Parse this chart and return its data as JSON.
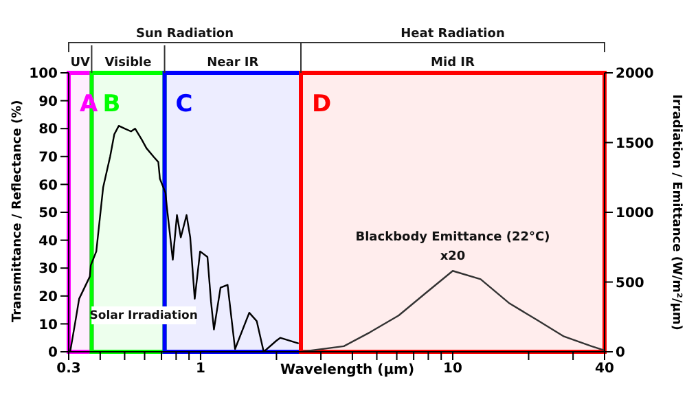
{
  "chart_data": {
    "type": "line",
    "xlabel": "Wavelength (µm)",
    "ylabel": "Transmittance / Reflectance (%)",
    "y2label": "Irradiation / Emittance (W/m²/µm)",
    "log": "x",
    "grid": false,
    "legend": false,
    "marker": "none",
    "line_style": "solid",
    "xlim": [
      0.3,
      40
    ],
    "xticks": [
      0.3,
      {
        "value": 0.4,
        "label": null
      },
      {
        "value": 0.5,
        "label": null
      },
      {
        "value": 0.6,
        "label": null
      },
      {
        "value": 0.7,
        "label": null
      },
      {
        "value": 0.8,
        "label": null
      },
      {
        "value": 0.9,
        "label": null
      },
      1,
      {
        "value": 2,
        "label": null
      },
      {
        "value": 3,
        "label": null
      },
      {
        "value": 4,
        "label": null
      },
      {
        "value": 5,
        "label": null
      },
      {
        "value": 6,
        "label": null
      },
      {
        "value": 7,
        "label": null
      },
      {
        "value": 8,
        "label": null
      },
      {
        "value": 9,
        "label": null
      },
      10,
      {
        "value": 20,
        "label": null
      },
      {
        "value": 30,
        "label": null
      },
      40
    ],
    "ylim": [
      0,
      100
    ],
    "yticks": [
      0,
      10,
      20,
      30,
      40,
      50,
      60,
      70,
      80,
      90,
      100
    ],
    "y2lim": [
      0,
      2000
    ],
    "y2ticks": [
      0,
      500,
      1000,
      1500,
      2000
    ],
    "series": [
      {
        "color": "#000000",
        "x": [
          0.3,
          0.304,
          0.319,
          0.33,
          0.364,
          0.367,
          0.386,
          0.411,
          0.438,
          0.455,
          0.474,
          0.5,
          0.53,
          0.55,
          0.585,
          0.61,
          0.65,
          0.68,
          0.69,
          0.726,
          0.735,
          0.776,
          0.806,
          0.835,
          0.88,
          0.91,
          0.948,
          0.996,
          1.065,
          1.1,
          1.13,
          1.2,
          1.28,
          1.37,
          1.56,
          1.67,
          1.78,
          2.0,
          2.07,
          2.45
        ],
        "values": [
          0,
          0,
          11,
          19,
          27,
          31,
          36,
          59,
          70,
          78,
          81,
          80,
          79,
          80,
          76,
          73,
          70,
          68,
          62,
          57,
          52,
          33,
          49,
          41,
          49,
          41,
          19,
          36,
          34,
          18,
          8,
          23,
          24,
          1,
          14,
          11,
          0,
          4,
          5,
          3
        ]
      },
      {
        "color": "#333333",
        "axis": "y2",
        "x": [
          2.5,
          3.7,
          4.7,
          6.1,
          7.8,
          10,
          12.9,
          16.7,
          21.5,
          27.6,
          35.5,
          40
        ],
        "values": [
          0,
          40,
          140,
          260,
          420,
          580,
          520,
          350,
          230,
          110,
          40,
          10
        ]
      }
    ],
    "bands": [
      {
        "axis": "x",
        "from": 0.3,
        "to": 0.37,
        "label": "A",
        "color": "#ff00ff"
      },
      {
        "axis": "x",
        "from": 0.37,
        "to": 0.72,
        "label": "B",
        "color": "#00ff00"
      },
      {
        "axis": "x",
        "from": 0.72,
        "to": 2.5,
        "label": "C",
        "color": "#0000ff"
      },
      {
        "axis": "x",
        "from": 2.5,
        "to": 40,
        "label": "D",
        "color": "#ff0000"
      }
    ],
    "annotations": [
      "Sun Radiation",
      "Heat Radiation",
      "UV",
      "Visible",
      "Near IR",
      "Mid IR",
      "Solar Irradiation",
      "Blackbody Emittance (22°C)",
      "x20"
    ]
  }
}
